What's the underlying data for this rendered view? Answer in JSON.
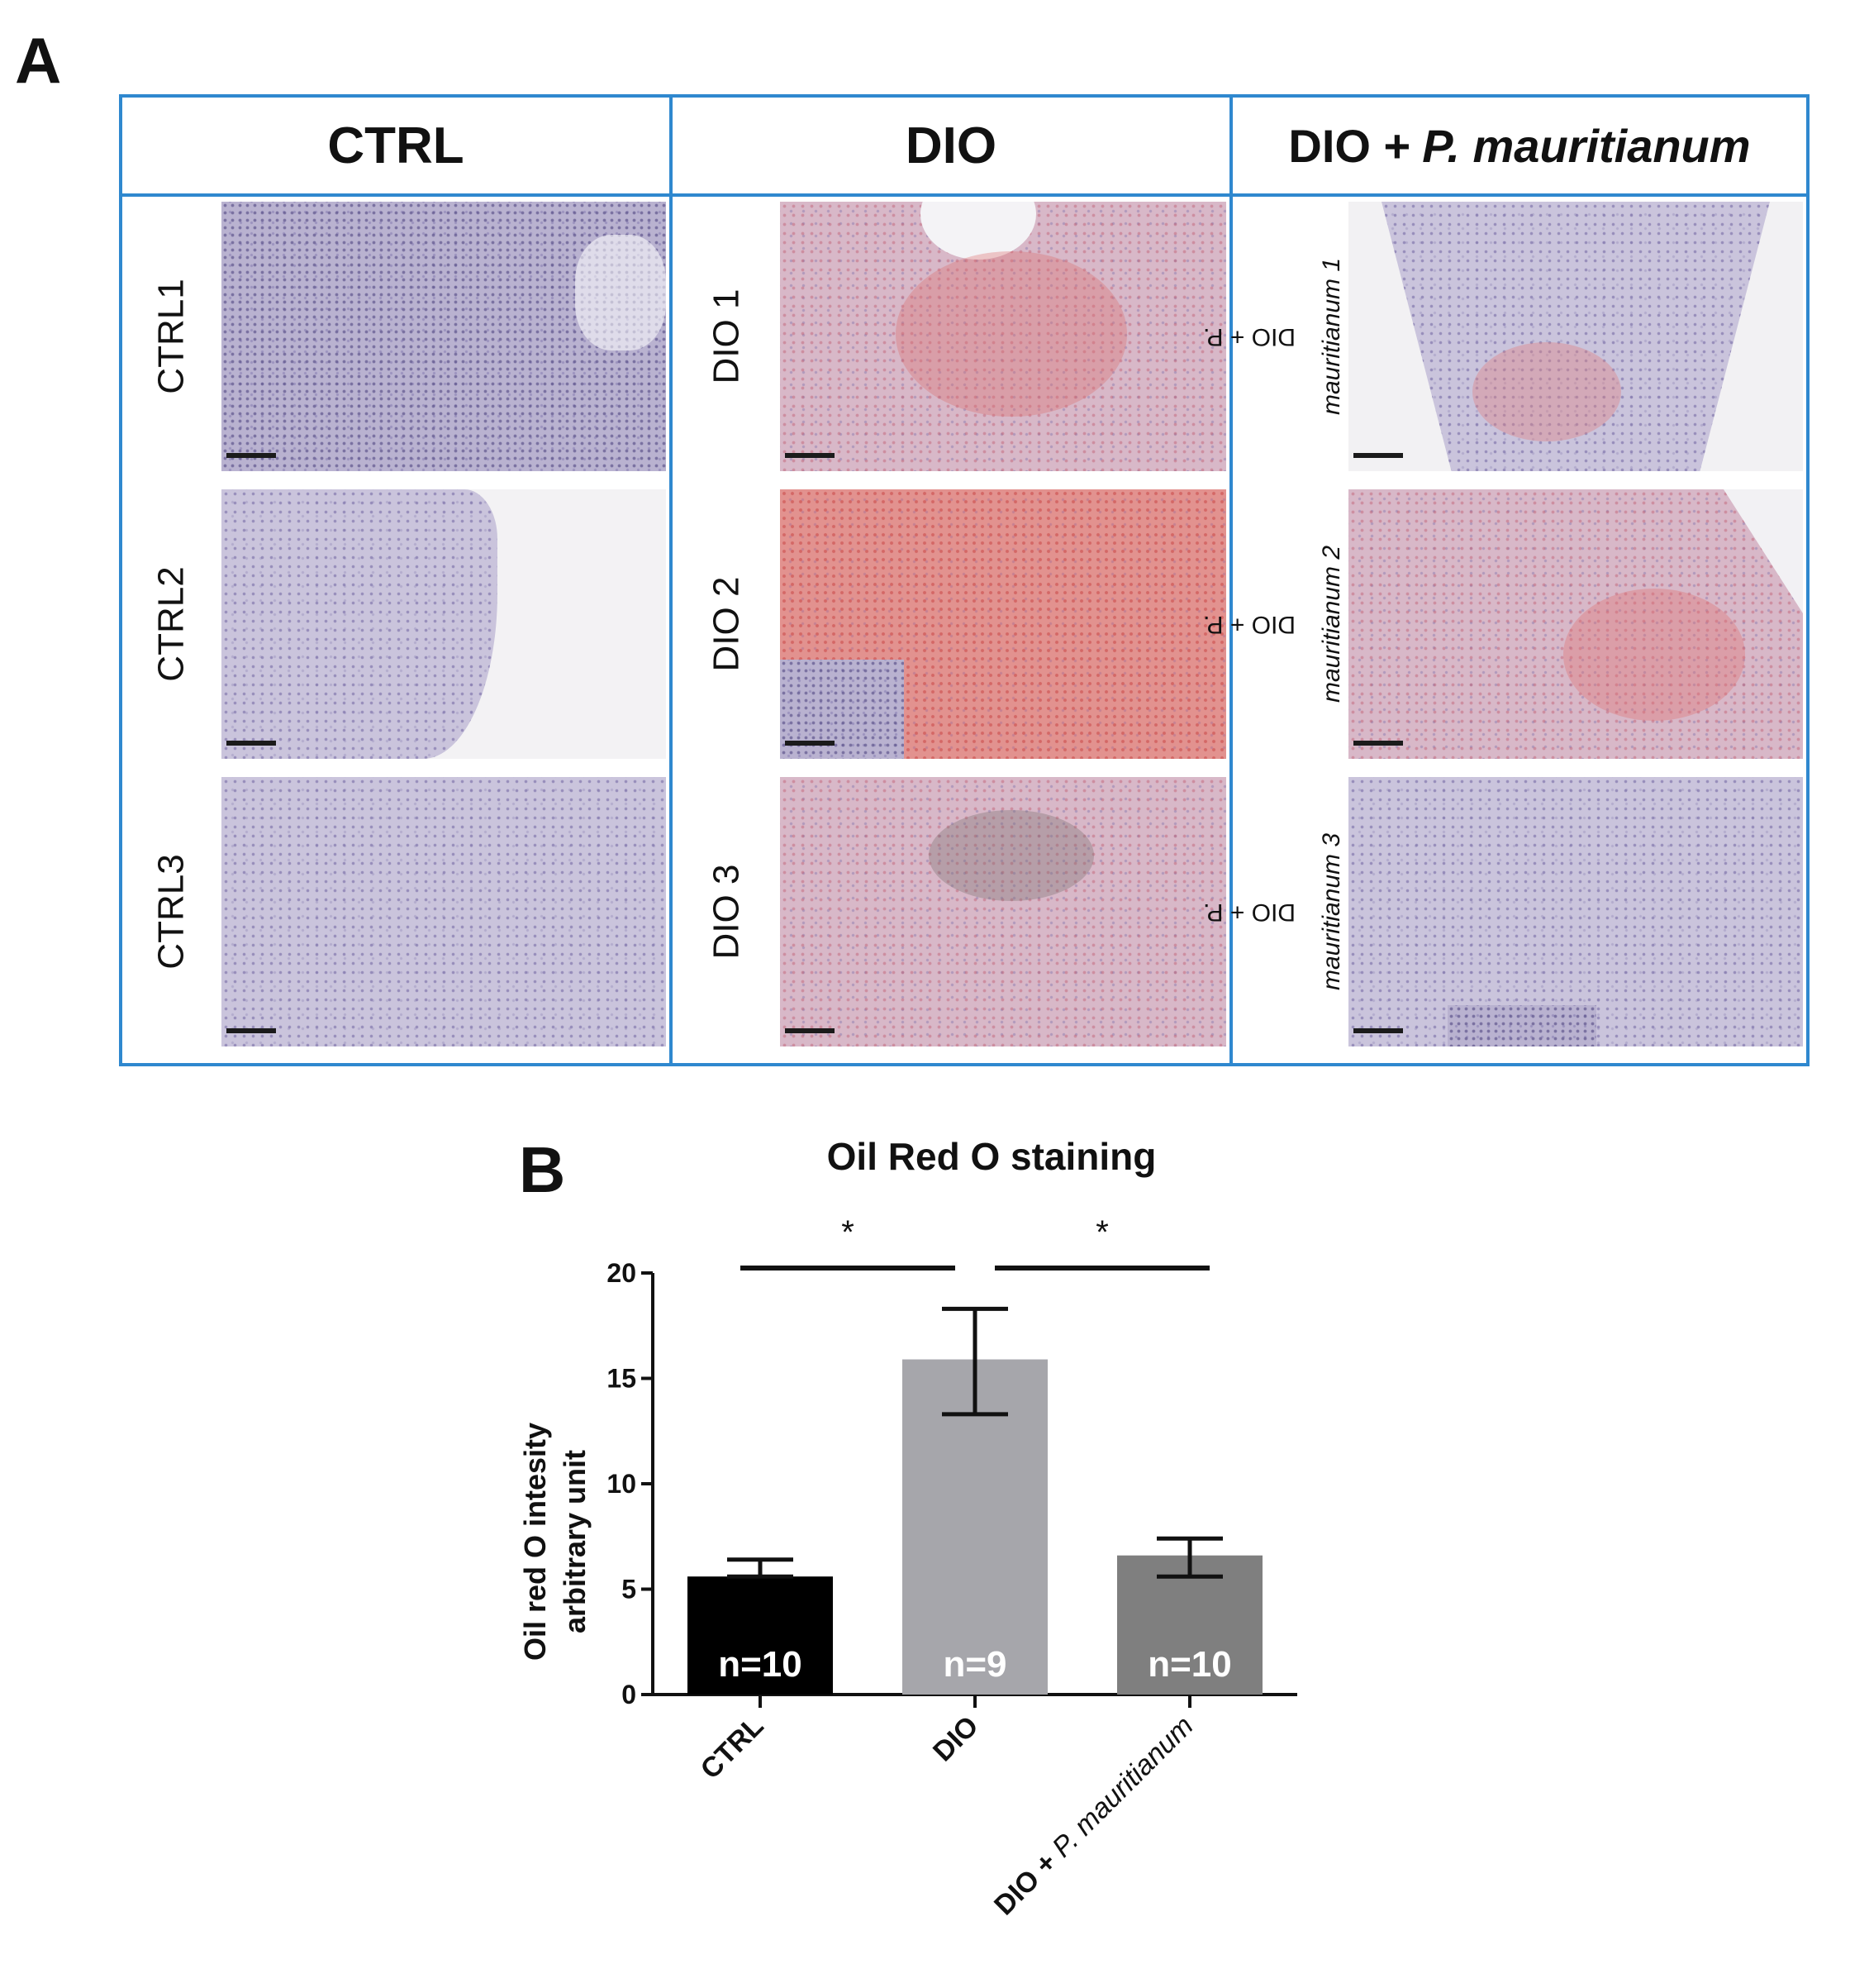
{
  "panel_a": {
    "letter": "A",
    "groups": [
      {
        "id": "ctrl",
        "header_main": "CTRL",
        "header_italic": "",
        "rows": [
          {
            "label": "CTRL1"
          },
          {
            "label": "CTRL2"
          },
          {
            "label": "CTRL3"
          }
        ]
      },
      {
        "id": "dio",
        "header_main": "DIO",
        "header_italic": "",
        "rows": [
          {
            "label": "DIO 1"
          },
          {
            "label": "DIO 2"
          },
          {
            "label": "DIO 3"
          }
        ]
      },
      {
        "id": "pm",
        "header_main": "DIO +",
        "header_italic": "P. mauritianum",
        "rows": [
          {
            "label_line1": "DIO + P.",
            "label_line2": "mauritianum 1"
          },
          {
            "label_line1": "DIO + P.",
            "label_line2": "mauritianum 2"
          },
          {
            "label_line1": "DIO + P.",
            "label_line2": "mauritianum 3"
          }
        ]
      }
    ]
  },
  "panel_b": {
    "letter": "B",
    "chart_data": {
      "type": "bar",
      "title": "Oil Red O staining",
      "ylabel_line1": "Oil red O intesity",
      "ylabel_line2": "arbitrary unit",
      "ylim": [
        0,
        20
      ],
      "yticks": [
        "0",
        "5",
        "10",
        "15",
        "20"
      ],
      "categories": [
        "CTRL",
        "DIO",
        "DIO + P. mauritianum"
      ],
      "category_prefix_3": "DIO + ",
      "category_italic_3": "P. mauritianum",
      "values": [
        5.6,
        15.9,
        6.6
      ],
      "error_upper": [
        6.4,
        18.3,
        7.4
      ],
      "error_lower": [
        5.6,
        13.3,
        5.6
      ],
      "n_labels": [
        "n=10",
        "n=9",
        "n=10"
      ],
      "colors": [
        "#000000",
        "#a6a6ab",
        "#7f7f7f"
      ],
      "significance": [
        {
          "from": 0,
          "to": 1,
          "label": "*"
        },
        {
          "from": 1,
          "to": 2,
          "label": "*"
        }
      ]
    }
  }
}
